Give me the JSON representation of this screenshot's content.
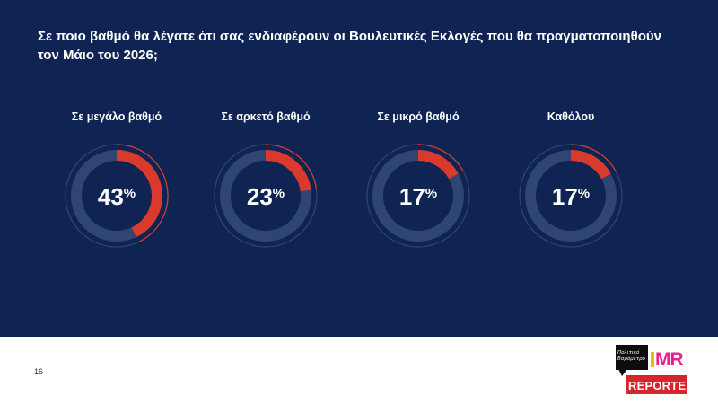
{
  "question": "Σε ποιο βαθμό θα λέγατε ότι σας ενδιαφέρουν οι Βουλευτικές Εκλογές που θα πραγματοποιηθούν τον Μάιο του 2026;",
  "page_number": "16",
  "logos": {
    "politiko": "Πολιτικό Βαρόμετρο",
    "mr": "MR",
    "reporter": "REPORTER"
  },
  "colors": {
    "background": "#0f2453",
    "track": "#2f4673",
    "value": "#d93a2b",
    "text": "#ffffff"
  },
  "chart_data": {
    "type": "pie",
    "title": "Σε ποιο βαθμό θα λέγατε ότι σας ενδιαφέρουν οι Βουλευτικές Εκλογές που θα πραγματοποιηθούν τον Μάιο του 2026;",
    "unit": "%",
    "categories": [
      "Σε μεγάλο βαθμό",
      "Σε αρκετό βαθμό",
      "Σε μικρό βαθμό",
      "Καθόλου"
    ],
    "values": [
      43,
      23,
      17,
      17
    ],
    "value_labels": [
      "43%",
      "23%",
      "17%",
      "17%"
    ]
  }
}
